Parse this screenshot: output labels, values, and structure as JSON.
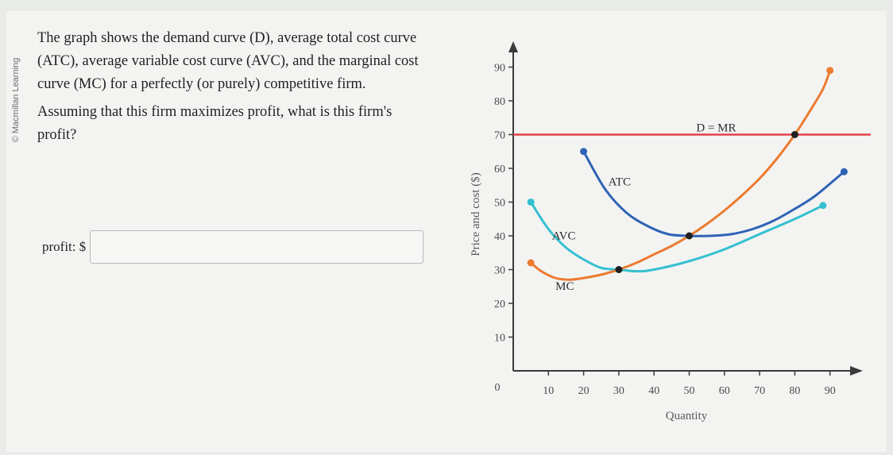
{
  "sidebar": {
    "publisher": "© Macmillan Learning"
  },
  "question": {
    "paragraph1": "The graph shows the demand curve (D), average total cost curve (ATC), average variable cost curve (AVC), and the marginal cost curve (MC) for a perfectly (or purely) competitive firm.",
    "paragraph2": "Assuming that this firm maximizes profit, what is this firm's profit?"
  },
  "answer": {
    "label": "profit: $",
    "value": ""
  },
  "chart_data": {
    "type": "line",
    "xlabel": "Quantity",
    "ylabel": "Price and cost ($)",
    "xlim": [
      0,
      95
    ],
    "ylim": [
      0,
      95
    ],
    "x_ticks": [
      0,
      10,
      20,
      30,
      40,
      50,
      60,
      70,
      80,
      90
    ],
    "y_ticks": [
      10,
      20,
      30,
      40,
      50,
      60,
      70,
      80,
      90
    ],
    "grid": false,
    "series": [
      {
        "name": "D = MR",
        "color": "#e8404a",
        "x": [
          0,
          100
        ],
        "y": [
          70,
          70
        ]
      },
      {
        "name": "ATC",
        "color": "#2f63b5",
        "x": [
          20,
          26,
          32,
          38,
          44,
          50,
          56,
          62,
          68,
          74,
          80,
          86,
          94
        ],
        "y": [
          65,
          54,
          47,
          43,
          40.5,
          40,
          40,
          40.5,
          42,
          44.5,
          48,
          52,
          59
        ]
      },
      {
        "name": "AVC",
        "color": "#35c0cf",
        "x": [
          5,
          10,
          15,
          20,
          25,
          30,
          35,
          40,
          50,
          60,
          70,
          80,
          88
        ],
        "y": [
          50,
          42,
          36.5,
          33,
          30.5,
          30,
          29.5,
          30,
          32.5,
          36,
          40.5,
          45,
          49
        ]
      },
      {
        "name": "MC",
        "color": "#ec7a30",
        "x": [
          5,
          8,
          12,
          16,
          20,
          25,
          30,
          35,
          40,
          45,
          50,
          55,
          60,
          65,
          70,
          75,
          80,
          84,
          88,
          90
        ],
        "y": [
          32,
          29.5,
          27.5,
          27,
          27.5,
          28.5,
          30,
          32,
          34.5,
          37,
          40,
          43.5,
          47.5,
          52,
          57,
          63,
          70,
          76.5,
          83.5,
          89
        ]
      }
    ],
    "points": [
      {
        "x": 30,
        "y": 30,
        "color": "#1f1f1f"
      },
      {
        "x": 50,
        "y": 40,
        "color": "#1f1f1f"
      },
      {
        "x": 80,
        "y": 70,
        "color": "#1f1f1f"
      },
      {
        "x": 5,
        "y": 50,
        "color": "#35c0cf"
      },
      {
        "x": 88,
        "y": 49,
        "color": "#35c0cf"
      },
      {
        "x": 20,
        "y": 65,
        "color": "#2f63b5"
      },
      {
        "x": 94,
        "y": 59,
        "color": "#2f63b5"
      },
      {
        "x": 5,
        "y": 32,
        "color": "#ec7a30"
      },
      {
        "x": 90,
        "y": 89,
        "color": "#ec7a30"
      }
    ],
    "annotations": [
      {
        "text": "D = MR",
        "x": 52,
        "y": 71
      },
      {
        "text": "ATC",
        "x": 27,
        "y": 55
      },
      {
        "text": "AVC",
        "x": 11,
        "y": 39
      },
      {
        "text": "MC",
        "x": 12,
        "y": 24
      }
    ]
  }
}
